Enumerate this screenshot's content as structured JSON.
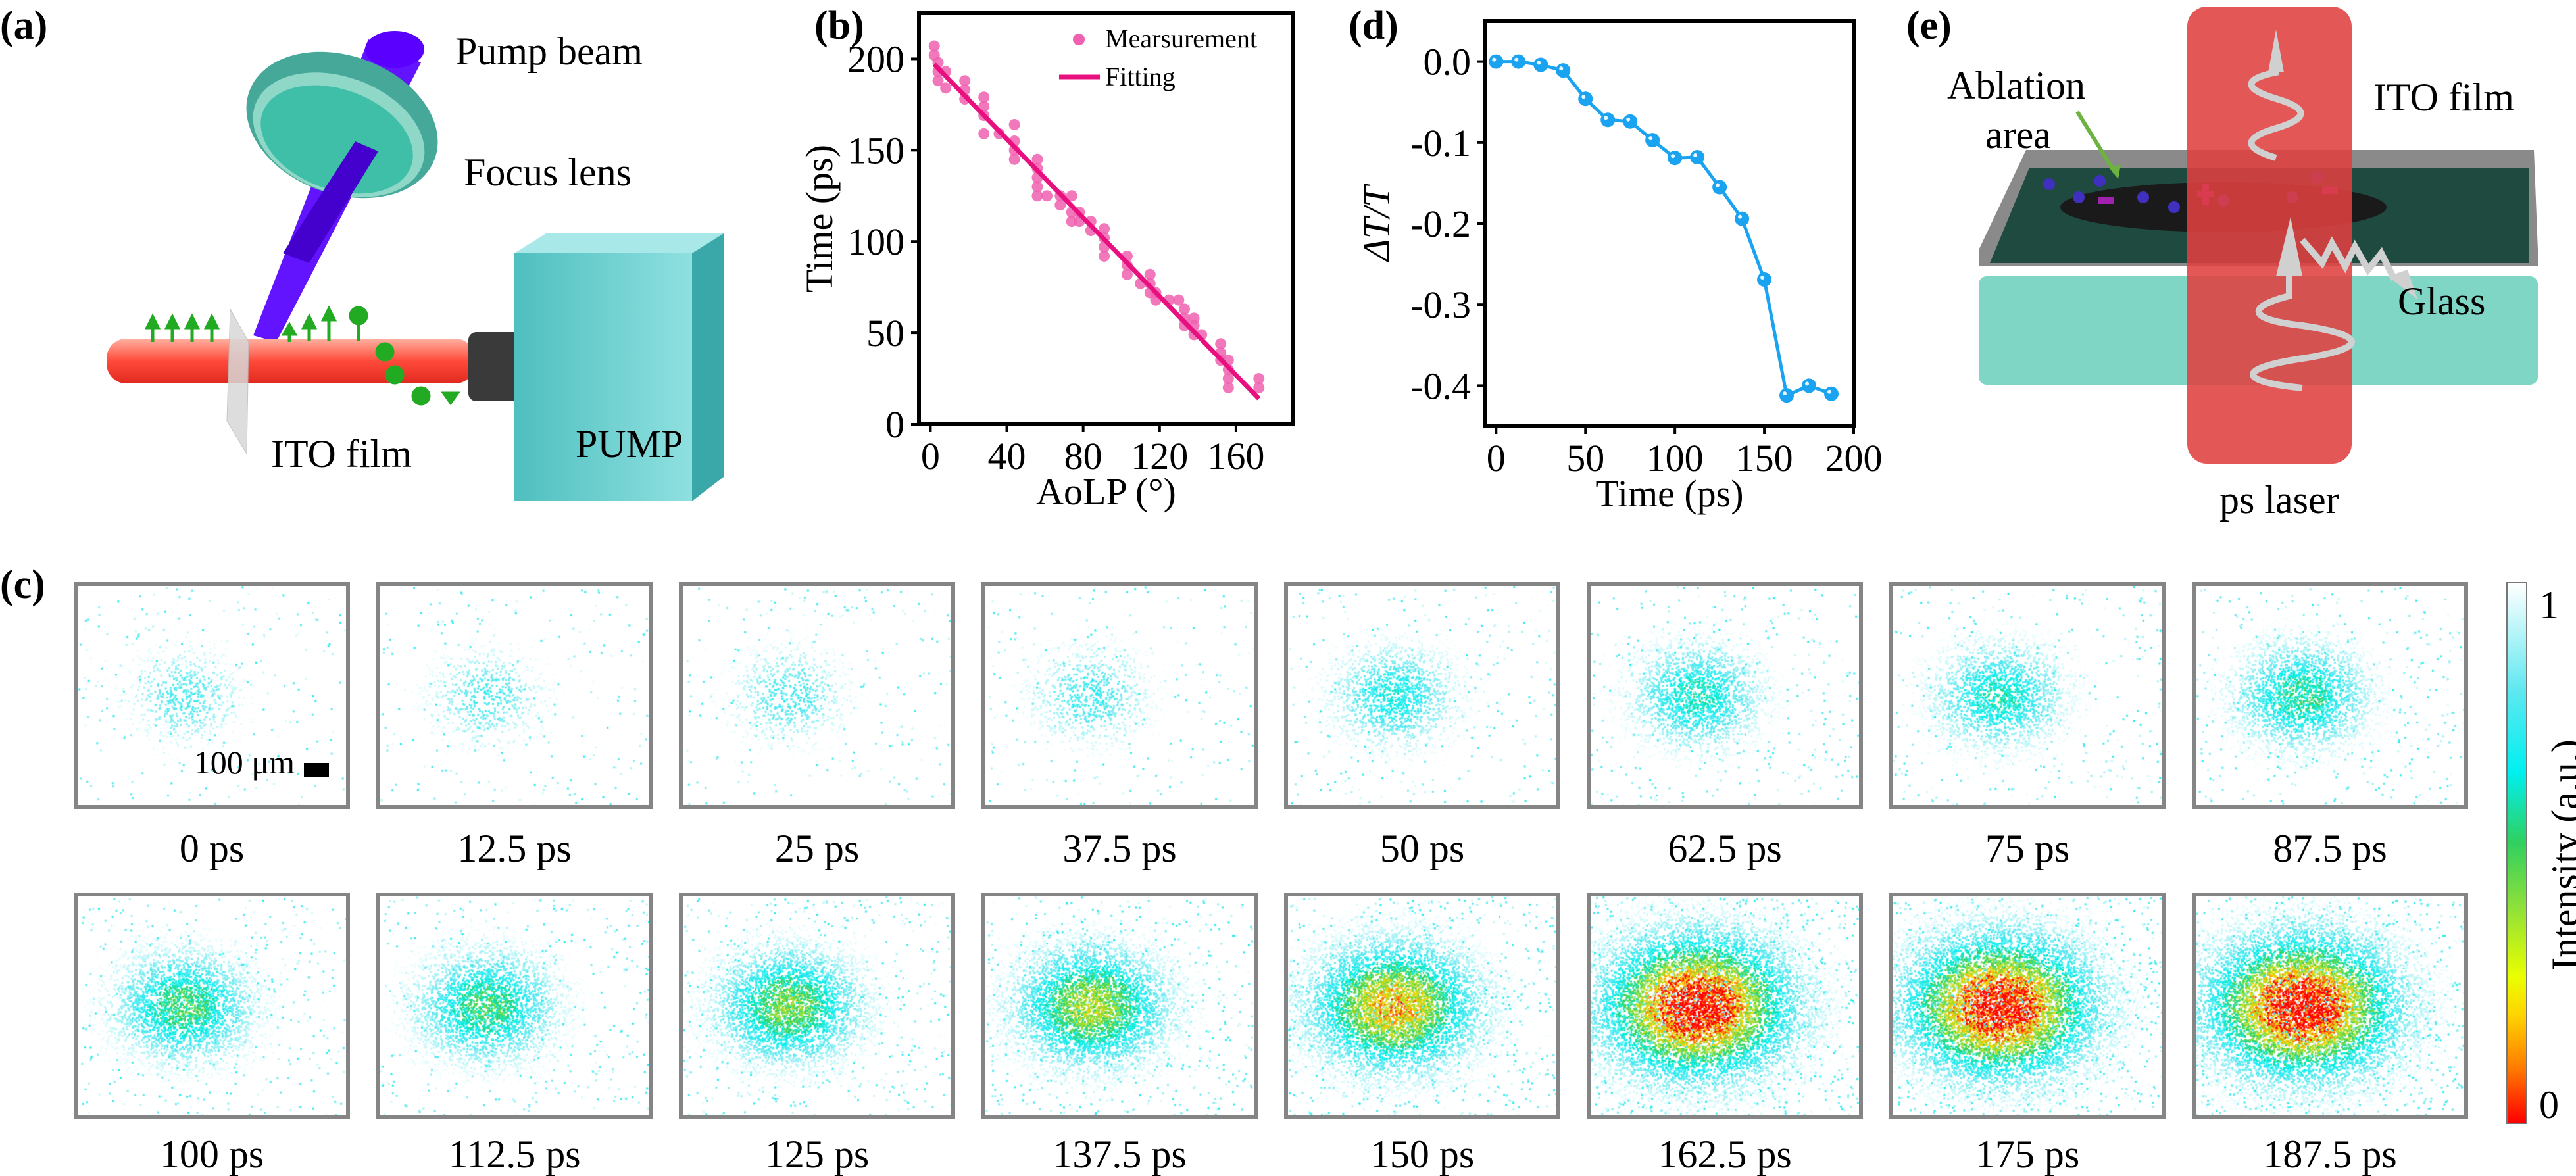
{
  "panels": {
    "a": {
      "label": "(a)",
      "pump_beam": "Pump beam",
      "focus_lens": "Focus lens",
      "ito_film": "ITO film",
      "pump": "PUMP",
      "colors": {
        "beam": "#5500ff",
        "lens": "#3fbfa8",
        "rod": "#ff4a3a",
        "pump_box": "#5cc9c9",
        "arrows": "#22aa22"
      }
    },
    "b": {
      "label": "(b)"
    },
    "c": {
      "label": "(c)",
      "scale_bar": "100 μm",
      "frames": [
        "0 ps",
        "12.5 ps",
        "25 ps",
        "37.5 ps",
        "50 ps",
        "62.5 ps",
        "75 ps",
        "87.5 ps",
        "100 ps",
        "112.5 ps",
        "125 ps",
        "137.5 ps",
        "150 ps",
        "162.5 ps",
        "175 ps",
        "187.5 ps"
      ],
      "colorbar": {
        "label": "Intensity (a.u.)",
        "max": "1",
        "min": "0",
        "colormap": [
          "#ff0000",
          "#ffd400",
          "#30d060",
          "#00f0f0",
          "#ffffff"
        ]
      }
    },
    "d": {
      "label": "(d)"
    },
    "e": {
      "label": "(e)",
      "ablation_area_1": "Ablation",
      "ablation_area_2": "area",
      "ito_film": "ITO film",
      "glass": "Glass",
      "ps_laser": "ps laser",
      "colors": {
        "laser": "#e04040",
        "film": "#1f4a40",
        "glass": "#7fd6c4",
        "frame": "#8a8a8a"
      }
    }
  },
  "chart_data": [
    {
      "id": "b",
      "type": "scatter",
      "xlabel": "AoLP (°)",
      "ylabel": "Time (ps)",
      "xlim": [
        -6,
        190
      ],
      "ylim": [
        0,
        225
      ],
      "xticks": [
        0,
        40,
        80,
        120,
        160
      ],
      "yticks": [
        0,
        50,
        100,
        150,
        200
      ],
      "grid": false,
      "legend": "top-right",
      "series": [
        {
          "name": "Mearsurement",
          "kind": "scatter",
          "color": "#f060b0",
          "points": [
            [
              2,
              207
            ],
            [
              2,
              202
            ],
            [
              4,
              198
            ],
            [
              4,
              193
            ],
            [
              4,
              188
            ],
            [
              8,
              193
            ],
            [
              8,
              184
            ],
            [
              18,
              188
            ],
            [
              18,
              183
            ],
            [
              18,
              178
            ],
            [
              28,
              179
            ],
            [
              28,
              174
            ],
            [
              28,
              169
            ],
            [
              28,
              159
            ],
            [
              36,
              159
            ],
            [
              44,
              164
            ],
            [
              44,
              155
            ],
            [
              44,
              150
            ],
            [
              44,
              145
            ],
            [
              56,
              145
            ],
            [
              56,
              140
            ],
            [
              56,
              135
            ],
            [
              56,
              130
            ],
            [
              56,
              125
            ],
            [
              61,
              125
            ],
            [
              68,
              125
            ],
            [
              68,
              120
            ],
            [
              74,
              125
            ],
            [
              74,
              116
            ],
            [
              74,
              111
            ],
            [
              78,
              116
            ],
            [
              78,
              111
            ],
            [
              84,
              111
            ],
            [
              84,
              106
            ],
            [
              91,
              107
            ],
            [
              91,
              102
            ],
            [
              91,
              97
            ],
            [
              91,
              92
            ],
            [
              103,
              92
            ],
            [
              103,
              87
            ],
            [
              103,
              82
            ],
            [
              110,
              77
            ],
            [
              115,
              82
            ],
            [
              115,
              77
            ],
            [
              115,
              72
            ],
            [
              118,
              72
            ],
            [
              118,
              68
            ],
            [
              125,
              68
            ],
            [
              130,
              68
            ],
            [
              133,
              63
            ],
            [
              133,
              58
            ],
            [
              133,
              54
            ],
            [
              138,
              58
            ],
            [
              138,
              54
            ],
            [
              138,
              49
            ],
            [
              142,
              49
            ],
            [
              152,
              44
            ],
            [
              152,
              39
            ],
            [
              152,
              35
            ],
            [
              156,
              35
            ],
            [
              156,
              30
            ],
            [
              156,
              25
            ],
            [
              156,
              20
            ],
            [
              172,
              25
            ],
            [
              172,
              20
            ]
          ]
        },
        {
          "name": "Fitting",
          "kind": "line",
          "color": "#e8107f",
          "points": [
            [
              2,
              197
            ],
            [
              172,
              14
            ]
          ]
        }
      ]
    },
    {
      "id": "d",
      "type": "line",
      "xlabel": "Time (ps)",
      "ylabel": "ΔT/T",
      "xlim": [
        -6,
        200
      ],
      "ylim": [
        -0.45,
        0.05
      ],
      "xticks": [
        0,
        50,
        100,
        150,
        200
      ],
      "yticks": [
        0.0,
        -0.1,
        -0.2,
        -0.3,
        -0.4
      ],
      "ytick_labels": [
        "0.0",
        "-0.1",
        "-0.2",
        "-0.3",
        "-0.4"
      ],
      "grid": false,
      "color": "#1aa3f0",
      "x": [
        0,
        12.5,
        25,
        37.5,
        50,
        62.5,
        75,
        87.5,
        100,
        112.5,
        125,
        137.5,
        150,
        162.5,
        175,
        187.5
      ],
      "y": [
        0.0,
        0.0,
        -0.004,
        -0.011,
        -0.046,
        -0.072,
        -0.074,
        -0.097,
        -0.119,
        -0.118,
        -0.155,
        -0.194,
        -0.269,
        -0.412,
        -0.4,
        -0.41
      ]
    }
  ]
}
